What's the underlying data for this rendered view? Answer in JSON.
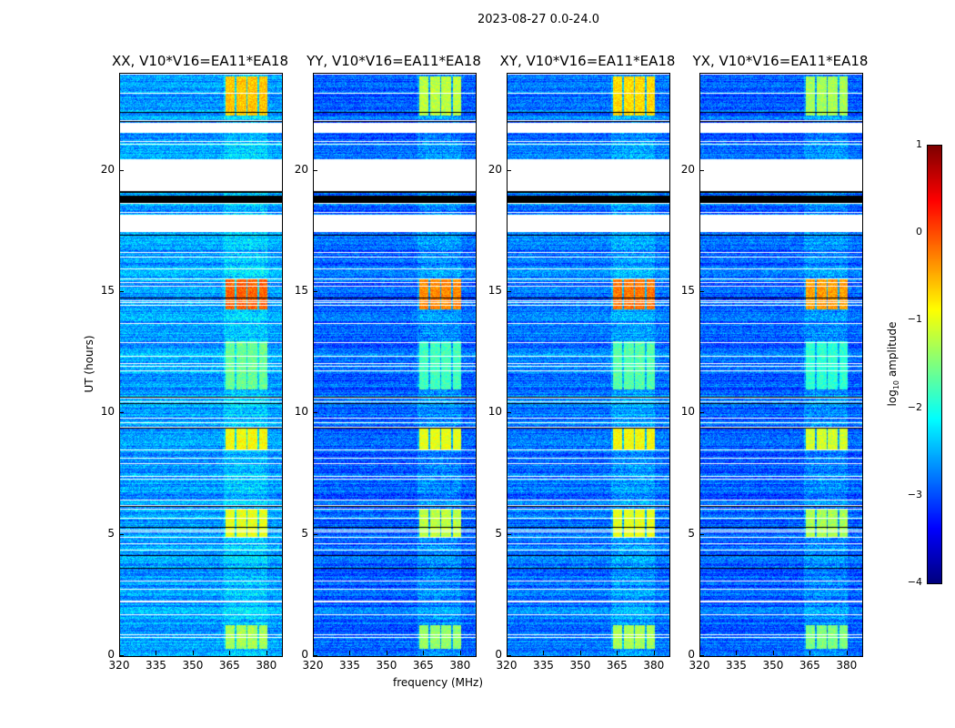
{
  "chart_data": {
    "type": "heatmap",
    "title": "2023-08-27 0.0-24.0",
    "xlabel": "frequency (MHz)",
    "ylabel": "UT (hours)",
    "xlim": [
      320,
      386
    ],
    "ylim": [
      0,
      24
    ],
    "xticks": [
      "320",
      "335",
      "350",
      "365",
      "380"
    ],
    "xtick_values": [
      320,
      335,
      350,
      365,
      380
    ],
    "yticks": [
      "0",
      "5",
      "10",
      "15",
      "20"
    ],
    "ytick_values": [
      0,
      5,
      10,
      15,
      20
    ],
    "colorbar": {
      "label": "log10 amplitude",
      "label_main": "log",
      "label_sub": "10",
      "label_rest": " amplitude",
      "range": [
        -4,
        1
      ],
      "ticks": [
        "1",
        "0",
        "−1",
        "−2",
        "−3",
        "−4"
      ],
      "tick_values": [
        1,
        0,
        -1,
        -2,
        -3,
        -4
      ],
      "colormap": "jet"
    },
    "panels": [
      {
        "title": "XX, V10*V16=EA11*EA18",
        "background": -2.6,
        "block_levels": [
          -0.6,
          -0.1,
          -1.3,
          -1.0,
          -0.9,
          -1.6
        ]
      },
      {
        "title": "YY, V10*V16=EA11*EA18",
        "background": -2.9,
        "block_levels": [
          -1.2,
          -0.3,
          -1.4,
          -1.2,
          -1.0,
          -1.8
        ]
      },
      {
        "title": "XY, V10*V16=EA11*EA18",
        "background": -2.8,
        "block_levels": [
          -0.7,
          -0.2,
          -1.3,
          -1.0,
          -0.9,
          -1.7
        ]
      },
      {
        "title": "YX, V10*V16=EA11*EA18",
        "background": -2.9,
        "block_levels": [
          -1.3,
          -0.4,
          -1.5,
          -1.3,
          -1.1,
          -1.9
        ]
      }
    ],
    "bright_band_mhz": [
      362,
      380
    ],
    "bright_hour_ranges": [
      [
        22.3,
        23.9
      ],
      [
        14.3,
        15.6
      ],
      [
        0.3,
        1.3
      ],
      [
        4.9,
        6.1
      ],
      [
        8.5,
        9.4
      ],
      [
        11.0,
        13.0
      ]
    ],
    "flagged_gaps_hours": [
      [
        21.6,
        22.0
      ],
      [
        19.2,
        20.5
      ],
      [
        17.5,
        18.2
      ]
    ],
    "black_gaps_hours": [
      [
        18.7,
        19.0
      ]
    ]
  }
}
